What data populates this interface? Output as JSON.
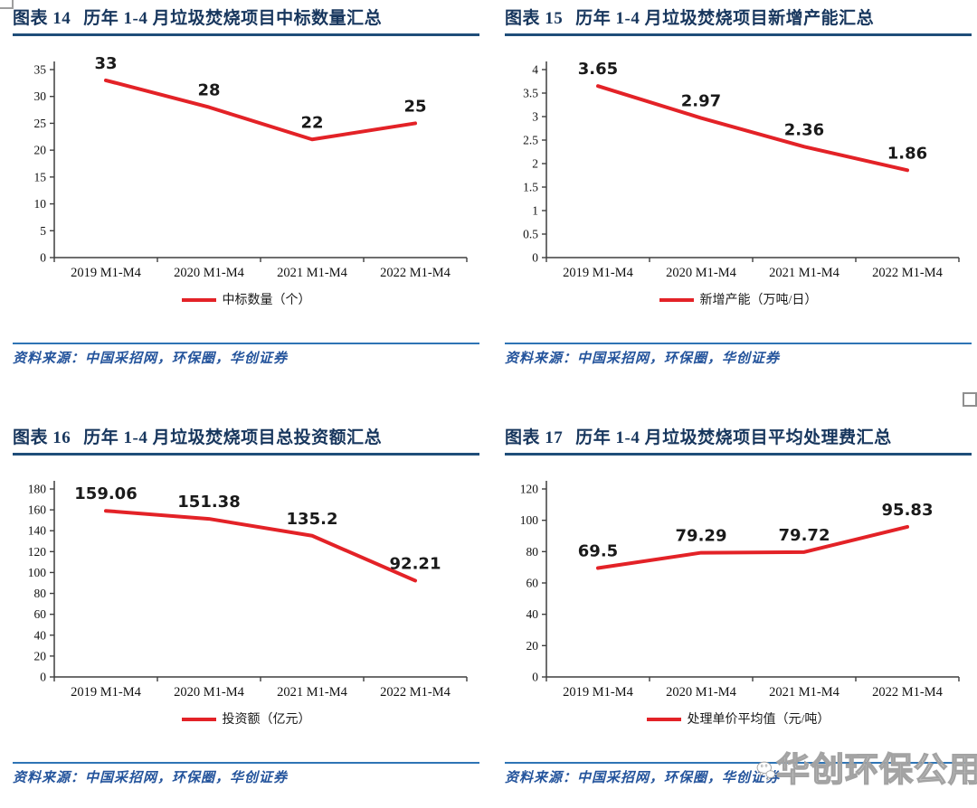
{
  "colors": {
    "title_blue": "#17365D",
    "rule_blue": "#1F4E79",
    "separator_blue": "#2E74B5",
    "source_blue": "#24549C",
    "line_red": "#E32227",
    "axis_gray": "#3F3F3F",
    "data_label_black": "#1A1A1A",
    "watermark_gray": "#A3A3A3"
  },
  "watermark": {
    "icon": "wechat-logo-icon",
    "text": "华创环保公用"
  },
  "chart_data": [
    {
      "type": "line",
      "figure_label": "图表 14",
      "title": "历年 1-4 月垃圾焚烧项目中标数量汇总",
      "categories": [
        "2019 M1-M4",
        "2020 M1-M4",
        "2021 M1-M4",
        "2022 M1-M4"
      ],
      "series": [
        {
          "name": "中标数量（个）",
          "color": "#E32227",
          "values": [
            33,
            28,
            22,
            25
          ]
        }
      ],
      "ylim": [
        0,
        35
      ],
      "ytick_step": 5,
      "grid": false,
      "legend_position": "bottom-center",
      "source": "资料来源：中国采招网，环保圈，华创证券"
    },
    {
      "type": "line",
      "figure_label": "图表 15",
      "title": "历年 1-4 月垃圾焚烧项目新增产能汇总",
      "categories": [
        "2019 M1-M4",
        "2020 M1-M4",
        "2021 M1-M4",
        "2022 M1-M4"
      ],
      "series": [
        {
          "name": "新增产能（万吨/日）",
          "color": "#E32227",
          "values": [
            3.65,
            2.97,
            2.36,
            1.86
          ]
        }
      ],
      "ylim": [
        0,
        4
      ],
      "ytick_step": 0.5,
      "grid": false,
      "legend_position": "bottom-center",
      "source": "资料来源：中国采招网，环保圈，华创证券"
    },
    {
      "type": "line",
      "figure_label": "图表 16",
      "title": "历年 1-4 月垃圾焚烧项目总投资额汇总",
      "categories": [
        "2019 M1-M4",
        "2020 M1-M4",
        "2021 M1-M4",
        "2022 M1-M4"
      ],
      "series": [
        {
          "name": "投资额（亿元）",
          "color": "#E32227",
          "values": [
            159.06,
            151.38,
            135.2,
            92.21
          ]
        }
      ],
      "ylim": [
        0,
        180
      ],
      "ytick_step": 20,
      "grid": false,
      "legend_position": "bottom-center",
      "source": "资料来源：中国采招网，环保圈，华创证券"
    },
    {
      "type": "line",
      "figure_label": "图表 17",
      "title": "历年 1-4 月垃圾焚烧项目平均处理费汇总",
      "categories": [
        "2019 M1-M4",
        "2020 M1-M4",
        "2021 M1-M4",
        "2022 M1-M4"
      ],
      "series": [
        {
          "name": "处理单价平均值（元/吨）",
          "color": "#E32227",
          "values": [
            69.5,
            79.29,
            79.72,
            95.83
          ]
        }
      ],
      "ylim": [
        0,
        120
      ],
      "ytick_step": 20,
      "grid": false,
      "legend_position": "bottom-center",
      "source": "资料来源：中国采招网，环保圈，华创证券"
    }
  ]
}
